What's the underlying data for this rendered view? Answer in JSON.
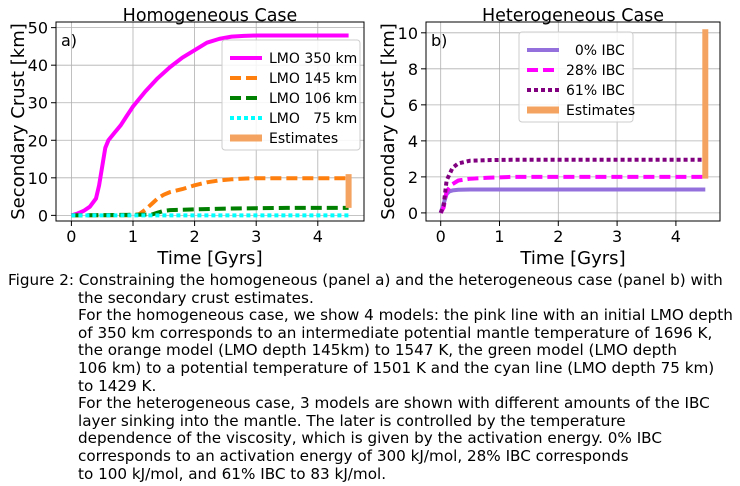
{
  "chart_data": [
    {
      "type": "line",
      "panel_label": "a)",
      "title": "Homogeneous Case",
      "xlabel": "Time [Gyrs]",
      "ylabel": "Secondary Crust [km]",
      "xlim": [
        -0.25,
        4.75
      ],
      "ylim": [
        -1.5,
        51.5
      ],
      "xticks": [
        "0",
        "1",
        "2",
        "3",
        "4"
      ],
      "xtick_values": [
        0,
        1,
        2,
        3,
        4
      ],
      "yticks": [
        "0",
        "10",
        "20",
        "30",
        "40",
        "50"
      ],
      "ytick_values": [
        0,
        10,
        20,
        30,
        40,
        50
      ],
      "grid": true,
      "legend_position": "center-right",
      "series": [
        {
          "name": "LMO 350 km",
          "color": "#ff00ff",
          "style": "solid",
          "x": [
            0,
            0.1,
            0.2,
            0.3,
            0.4,
            0.45,
            0.5,
            0.55,
            0.6,
            0.7,
            0.8,
            0.9,
            1.0,
            1.2,
            1.4,
            1.6,
            1.8,
            2.0,
            2.2,
            2.4,
            2.6,
            2.8,
            3.0,
            3.5,
            4.0,
            4.5
          ],
          "y": [
            0,
            0.5,
            1.2,
            2.3,
            4.5,
            8,
            13,
            18,
            20,
            22,
            24,
            26.5,
            29,
            33,
            36.5,
            39.5,
            42,
            44,
            46,
            47,
            47.6,
            47.8,
            47.9,
            47.9,
            47.9,
            47.9
          ]
        },
        {
          "name": "LMO 145 km",
          "color": "#ff7f0e",
          "style": "dashed",
          "x": [
            0,
            1.0,
            1.1,
            1.2,
            1.3,
            1.4,
            1.5,
            1.6,
            1.8,
            2.0,
            2.2,
            2.4,
            2.6,
            2.8,
            3.0,
            3.5,
            4.0,
            4.5
          ],
          "y": [
            0,
            0,
            0.3,
            1.5,
            3,
            4.5,
            5.5,
            6.2,
            7,
            8,
            8.8,
            9.3,
            9.6,
            9.8,
            9.9,
            9.9,
            9.9,
            9.9
          ]
        },
        {
          "name": "LMO 106 km",
          "color": "#008000",
          "style": "dashed",
          "x": [
            0,
            1.3,
            1.4,
            1.5,
            1.6,
            2.0,
            2.5,
            3.0,
            3.5,
            4.0,
            4.5
          ],
          "y": [
            0,
            0.2,
            0.7,
            1.2,
            1.4,
            1.6,
            1.8,
            1.9,
            2.0,
            2.0,
            2.0
          ]
        },
        {
          "name": "LMO   75 km",
          "color": "#00ffff",
          "style": "dotted",
          "x": [
            0,
            1.0,
            2.0,
            3.0,
            4.0,
            4.5
          ],
          "y": [
            0,
            0,
            0,
            0,
            0,
            0
          ]
        }
      ],
      "estimates": {
        "name": "Estimates",
        "color": "#f4a460",
        "x": 4.5,
        "ymin": 2,
        "ymax": 11
      }
    },
    {
      "type": "line",
      "panel_label": "b)",
      "title": "Heterogeneous Case",
      "xlabel": "Time [Gyrs]",
      "ylabel": "Secondary Crust [km]",
      "xlim": [
        -0.25,
        4.75
      ],
      "ylim": [
        -0.45,
        10.6
      ],
      "xticks": [
        "0",
        "1",
        "2",
        "3",
        "4"
      ],
      "xtick_values": [
        0,
        1,
        2,
        3,
        4
      ],
      "yticks": [
        "0",
        "2",
        "4",
        "6",
        "8",
        "10"
      ],
      "ytick_values": [
        0,
        2,
        4,
        6,
        8,
        10
      ],
      "grid": true,
      "legend_position": "upper-center",
      "series": [
        {
          "name": "  0% IBC",
          "color": "#9370db",
          "style": "solid",
          "x": [
            0,
            0.05,
            0.1,
            0.15,
            0.2,
            0.3,
            0.5,
            1.0,
            2.0,
            3.0,
            4.0,
            4.5
          ],
          "y": [
            0,
            0.5,
            1.05,
            1.2,
            1.25,
            1.28,
            1.3,
            1.3,
            1.3,
            1.3,
            1.3,
            1.3
          ]
        },
        {
          "name": "28% IBC",
          "color": "#ff00ff",
          "style": "dashed",
          "x": [
            0,
            0.05,
            0.1,
            0.2,
            0.3,
            0.5,
            0.8,
            1.2,
            2.0,
            3.0,
            4.0,
            4.5
          ],
          "y": [
            0,
            0.3,
            1.2,
            1.6,
            1.8,
            1.9,
            1.95,
            2.0,
            2.0,
            2.0,
            2.0,
            2.0
          ]
        },
        {
          "name": "61% IBC",
          "color": "#800080",
          "style": "dotted",
          "x": [
            0,
            0.05,
            0.1,
            0.2,
            0.3,
            0.5,
            0.8,
            1.2,
            2.0,
            3.0,
            4.0,
            4.5
          ],
          "y": [
            0,
            0.4,
            1.8,
            2.5,
            2.75,
            2.9,
            2.93,
            2.95,
            2.95,
            2.95,
            2.95,
            2.95
          ]
        }
      ],
      "estimates": {
        "name": "Estimates",
        "color": "#f4a460",
        "x": 4.5,
        "ymin": 1.9,
        "ymax": 10.2
      }
    }
  ],
  "caption": {
    "line1": "Figure 2: Constraining the homogeneous (panel a) and the heterogeneous case (panel b) with",
    "lines": [
      "the secondary crust estimates.",
      "For the homogeneous case, we show 4 models: the pink line with an initial LMO depth",
      "of 350 km corresponds to an intermediate potential mantle temperature of 1696 K,",
      "the orange model (LMO depth 145km) to 1547 K, the green model (LMO depth",
      "106 km) to a potential temperature of 1501 K and the cyan line (LMO depth 75 km)",
      "to 1429 K.",
      "For the heterogeneous case, 3 models are shown with different amounts of the IBC",
      "layer sinking into the mantle. The later is controlled by the temperature",
      "dependence of the viscosity, which is given by the activation energy. 0% IBC",
      "corresponds to an activation energy of 300 kJ/mol, 28% IBC corresponds",
      "to 100 kJ/mol, and 61% IBC to 83 kJ/mol."
    ]
  }
}
